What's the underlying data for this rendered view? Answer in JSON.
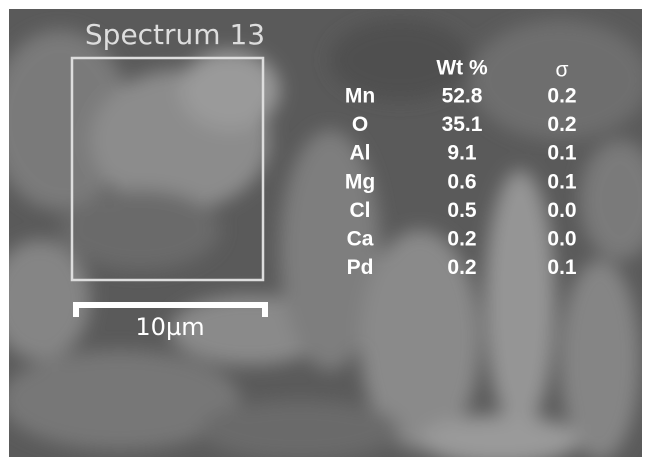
{
  "spectrum_label": "Spectrum 13",
  "scale_bar": "10µm",
  "table": {
    "header": {
      "wt": "Wt %",
      "sigma": "σ"
    },
    "rows": [
      [
        "Mn",
        "52.8",
        "0.2"
      ],
      [
        "O",
        "35.1",
        "0.2"
      ],
      [
        "Al",
        "9.1",
        "0.1"
      ],
      [
        "Mg",
        "0.6",
        "0.1"
      ],
      [
        "Cl",
        "0.5",
        "0.0"
      ],
      [
        "Ca",
        "0.2",
        "0.0"
      ],
      [
        "Pd",
        "0.2",
        "0.1"
      ]
    ]
  }
}
